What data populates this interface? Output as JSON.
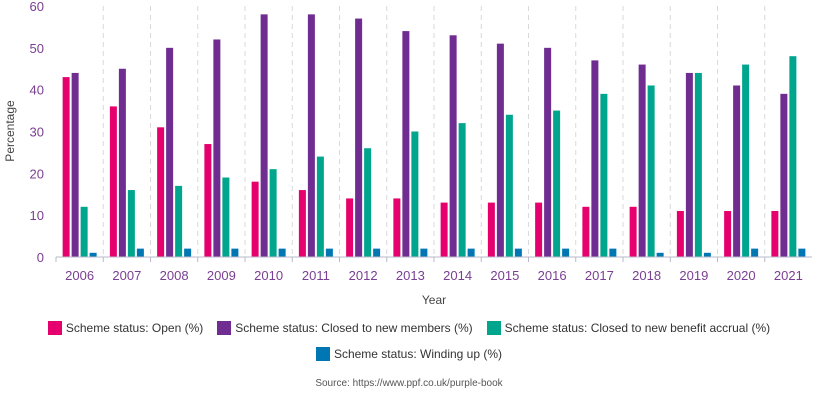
{
  "chart_data": {
    "type": "bar",
    "xlabel": "Year",
    "ylabel": "Percentage",
    "ylim": [
      0,
      60
    ],
    "yticks": [
      0,
      10,
      20,
      30,
      40,
      50,
      60
    ],
    "grid": "vertical dashed between categories",
    "legend_placement": "bottom",
    "categories": [
      "2006",
      "2007",
      "2008",
      "2009",
      "2010",
      "2011",
      "2012",
      "2013",
      "2014",
      "2015",
      "2016",
      "2017",
      "2018",
      "2019",
      "2020",
      "2021"
    ],
    "series": [
      {
        "name": "Scheme status: Open (%)",
        "color": "#e5006d",
        "values": [
          43,
          36,
          31,
          27,
          18,
          16,
          14,
          14,
          13,
          13,
          13,
          12,
          12,
          11,
          11,
          11
        ]
      },
      {
        "name": "Scheme status: Closed to new members (%)",
        "color": "#6f2c91",
        "values": [
          44,
          45,
          50,
          52,
          58,
          58,
          57,
          54,
          53,
          51,
          50,
          47,
          46,
          44,
          41,
          39
        ]
      },
      {
        "name": "Scheme status: Closed to new benefit accrual (%)",
        "color": "#00a58e",
        "values": [
          12,
          16,
          17,
          19,
          21,
          24,
          26,
          30,
          32,
          34,
          35,
          39,
          41,
          44,
          46,
          48
        ]
      },
      {
        "name": "Scheme status: Winding up (%)",
        "color": "#0077b3",
        "values": [
          1,
          2,
          2,
          2,
          2,
          2,
          2,
          2,
          2,
          2,
          2,
          2,
          1,
          1,
          2,
          2
        ]
      }
    ]
  },
  "source": "Source: https://www.ppf.co.uk/purple-book"
}
